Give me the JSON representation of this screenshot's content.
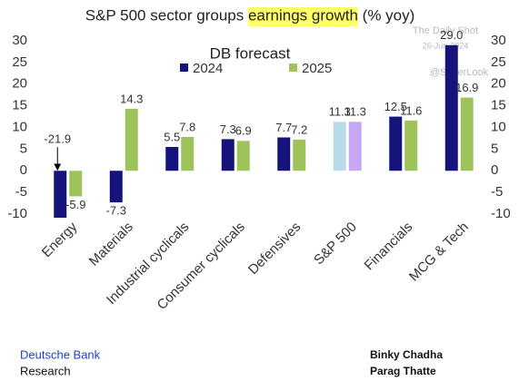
{
  "chart_data": {
    "type": "bar",
    "title": [
      "S&P 500 sector groups ",
      "earnings growth",
      " (% yoy)"
    ],
    "title_highlight": 1,
    "highlight_color": "#ffff66",
    "subtitle": "DB forecast",
    "categories": [
      "Energy",
      "Materials",
      "Industrial cyclicals",
      "Consumer cyclicals",
      "Defensives",
      "S&P 500",
      "Financials",
      "MCG & Tech"
    ],
    "series": [
      {
        "name": "2024",
        "color": "#14147a",
        "colors": [
          "#14147a",
          "#14147a",
          "#14147a",
          "#14147a",
          "#14147a",
          "#b8dbe8",
          "#14147a",
          "#14147a"
        ],
        "values": [
          -21.9,
          -7.3,
          5.5,
          7.3,
          7.7,
          11.3,
          12.5,
          29.0
        ],
        "value_labels": [
          "-21.9",
          "-7.3",
          "5.5",
          "7.3",
          "7.7",
          "11.3",
          "12.5",
          "29.0"
        ]
      },
      {
        "name": "2025",
        "color": "#9dc35a",
        "colors": [
          "#9dc35a",
          "#9dc35a",
          "#9dc35a",
          "#9dc35a",
          "#9dc35a",
          "#c7a8f5",
          "#9dc35a",
          "#9dc35a"
        ],
        "values": [
          -5.9,
          14.3,
          7.8,
          6.9,
          7.2,
          11.3,
          11.6,
          16.9
        ],
        "value_labels": [
          "-5.9",
          "14.3",
          "7.8",
          "6.9",
          "7.2",
          "11.3",
          "11.6",
          "16.9"
        ]
      }
    ],
    "ylim": [
      -10,
      30
    ],
    "yticks": [
      -10,
      -5,
      0,
      5,
      10,
      15,
      20,
      25,
      30
    ],
    "y2lim": [
      -10,
      30
    ],
    "y2ticks": [
      -10,
      -5,
      0,
      5,
      10,
      15,
      20,
      25,
      30
    ],
    "grid": false,
    "legend": "top",
    "watermark": [
      "The Daily Shot",
      "26-Jun-2024",
      "@SoberLook"
    ],
    "footer": {
      "left": [
        "Deutsche Bank",
        "Research"
      ],
      "right": [
        "Binky Chadha",
        "Parag Thatte"
      ]
    }
  }
}
